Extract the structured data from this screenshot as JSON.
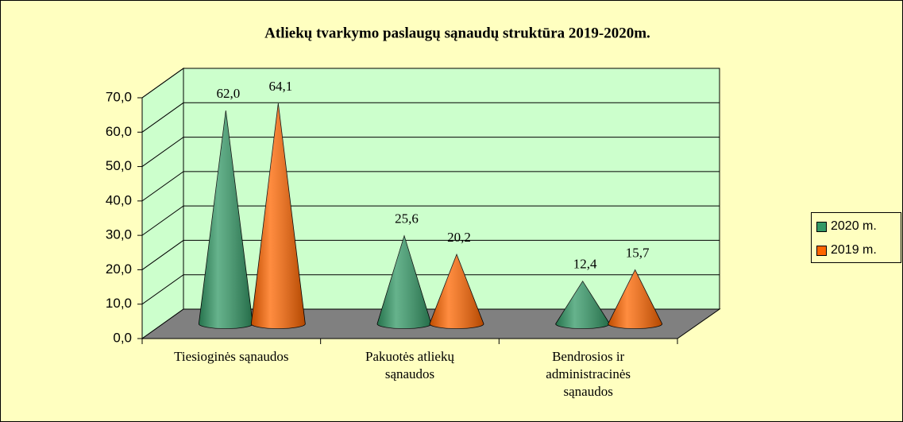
{
  "chart_data": {
    "type": "cone3d",
    "title": "Atliekų tvarkymo paslaugų sąnaudų struktūra 2019-2020m.",
    "categories": [
      "Tiesioginės sąnaudos",
      "Pakuotės atliekų sąnaudos",
      "Bendrosios ir administracinės sąnaudos"
    ],
    "series": [
      {
        "name": "2020 m.",
        "color": "#339966",
        "values": [
          62.0,
          25.6,
          12.4
        ],
        "value_labels": [
          "62,0",
          "25,6",
          "12,4"
        ]
      },
      {
        "name": "2019 m.",
        "color": "#ff6600",
        "values": [
          64.1,
          20.2,
          15.7
        ],
        "value_labels": [
          "64,1",
          "20,2",
          "15,7"
        ]
      }
    ],
    "ylim": [
      0,
      70
    ],
    "yticks": [
      {
        "value": 0,
        "label": "0,0"
      },
      {
        "value": 10,
        "label": "10,0"
      },
      {
        "value": 20,
        "label": "20,0"
      },
      {
        "value": 30,
        "label": "30,0"
      },
      {
        "value": 40,
        "label": "40,0"
      },
      {
        "value": 50,
        "label": "50,0"
      },
      {
        "value": 60,
        "label": "60,0"
      },
      {
        "value": 70,
        "label": "70,0"
      }
    ],
    "grid": true,
    "legend": "right"
  }
}
